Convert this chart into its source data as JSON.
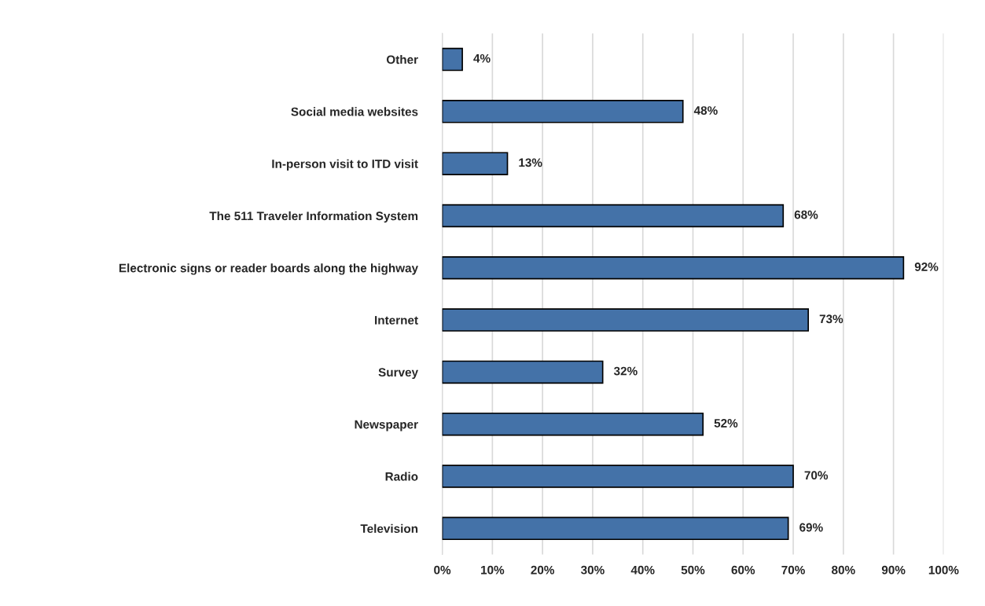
{
  "chart_data": {
    "type": "bar",
    "orientation": "horizontal",
    "categories": [
      "Other",
      "Social media websites",
      "In-person visit to ITD visit",
      "The 511 Traveler Information System",
      "Electronic signs or reader boards along the highway",
      "Internet",
      "Survey",
      "Newspaper",
      "Radio",
      "Television"
    ],
    "values": [
      4,
      48,
      13,
      68,
      92,
      73,
      32,
      52,
      70,
      69
    ],
    "value_labels": [
      "4%",
      "48%",
      "13%",
      "68%",
      "92%",
      "73%",
      "32%",
      "52%",
      "70%",
      "69%"
    ],
    "color": "#4472a8",
    "xlim": [
      0,
      100
    ],
    "xticks": [
      {
        "value": 0,
        "label": "0%"
      },
      {
        "value": 10,
        "label": "10%"
      },
      {
        "value": 20,
        "label": "20%"
      },
      {
        "value": 30,
        "label": "30%"
      },
      {
        "value": 40,
        "label": "40%"
      },
      {
        "value": 50,
        "label": "50%"
      },
      {
        "value": 60,
        "label": "60%"
      },
      {
        "value": 70,
        "label": "70%"
      },
      {
        "value": 80,
        "label": "80%"
      },
      {
        "value": 90,
        "label": "90%"
      },
      {
        "value": 100,
        "label": "100%"
      }
    ],
    "grid": "x",
    "legend": false
  }
}
